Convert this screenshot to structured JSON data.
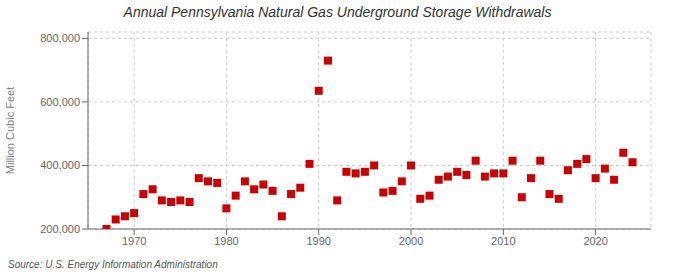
{
  "chart_data": {
    "type": "scatter",
    "title": "Annual Pennsylvania Natural  Gas Underground Storage Withdrawals",
    "ylabel": "Million Cubic Feet",
    "source": "Source: U.S. Energy Information Administration",
    "x": [
      1967,
      1968,
      1969,
      1970,
      1971,
      1972,
      1973,
      1974,
      1975,
      1976,
      1977,
      1978,
      1979,
      1980,
      1981,
      1982,
      1983,
      1984,
      1985,
      1986,
      1987,
      1988,
      1989,
      1990,
      1991,
      1992,
      1993,
      1994,
      1995,
      1996,
      1997,
      1998,
      1999,
      2000,
      2001,
      2002,
      2003,
      2004,
      2005,
      2006,
      2007,
      2008,
      2009,
      2010,
      2011,
      2012,
      2013,
      2014,
      2015,
      2016,
      2017,
      2018,
      2019,
      2020,
      2021,
      2022,
      2023,
      2024
    ],
    "values": [
      200000,
      230000,
      240000,
      250000,
      310000,
      325000,
      290000,
      285000,
      290000,
      285000,
      360000,
      350000,
      345000,
      265000,
      305000,
      350000,
      325000,
      340000,
      320000,
      240000,
      310000,
      330000,
      405000,
      635000,
      730000,
      290000,
      380000,
      375000,
      380000,
      400000,
      315000,
      320000,
      350000,
      400000,
      295000,
      305000,
      355000,
      365000,
      380000,
      370000,
      415000,
      365000,
      375000,
      375000,
      415000,
      300000,
      360000,
      415000,
      310000,
      295000,
      385000,
      405000,
      420000,
      360000,
      390000,
      355000,
      440000,
      410000
    ],
    "color": "#cc0000",
    "marker": "square",
    "xlim": [
      1965,
      2026
    ],
    "ylim": [
      200000,
      820000
    ],
    "xticks": [
      1970,
      1980,
      1990,
      2000,
      2010,
      2020
    ],
    "yticks": [
      {
        "value": 200000,
        "label": "200,000"
      },
      {
        "value": 400000,
        "label": "400,000"
      },
      {
        "value": 600000,
        "label": "600,000"
      },
      {
        "value": 800000,
        "label": "800,000"
      }
    ],
    "grid": true
  }
}
